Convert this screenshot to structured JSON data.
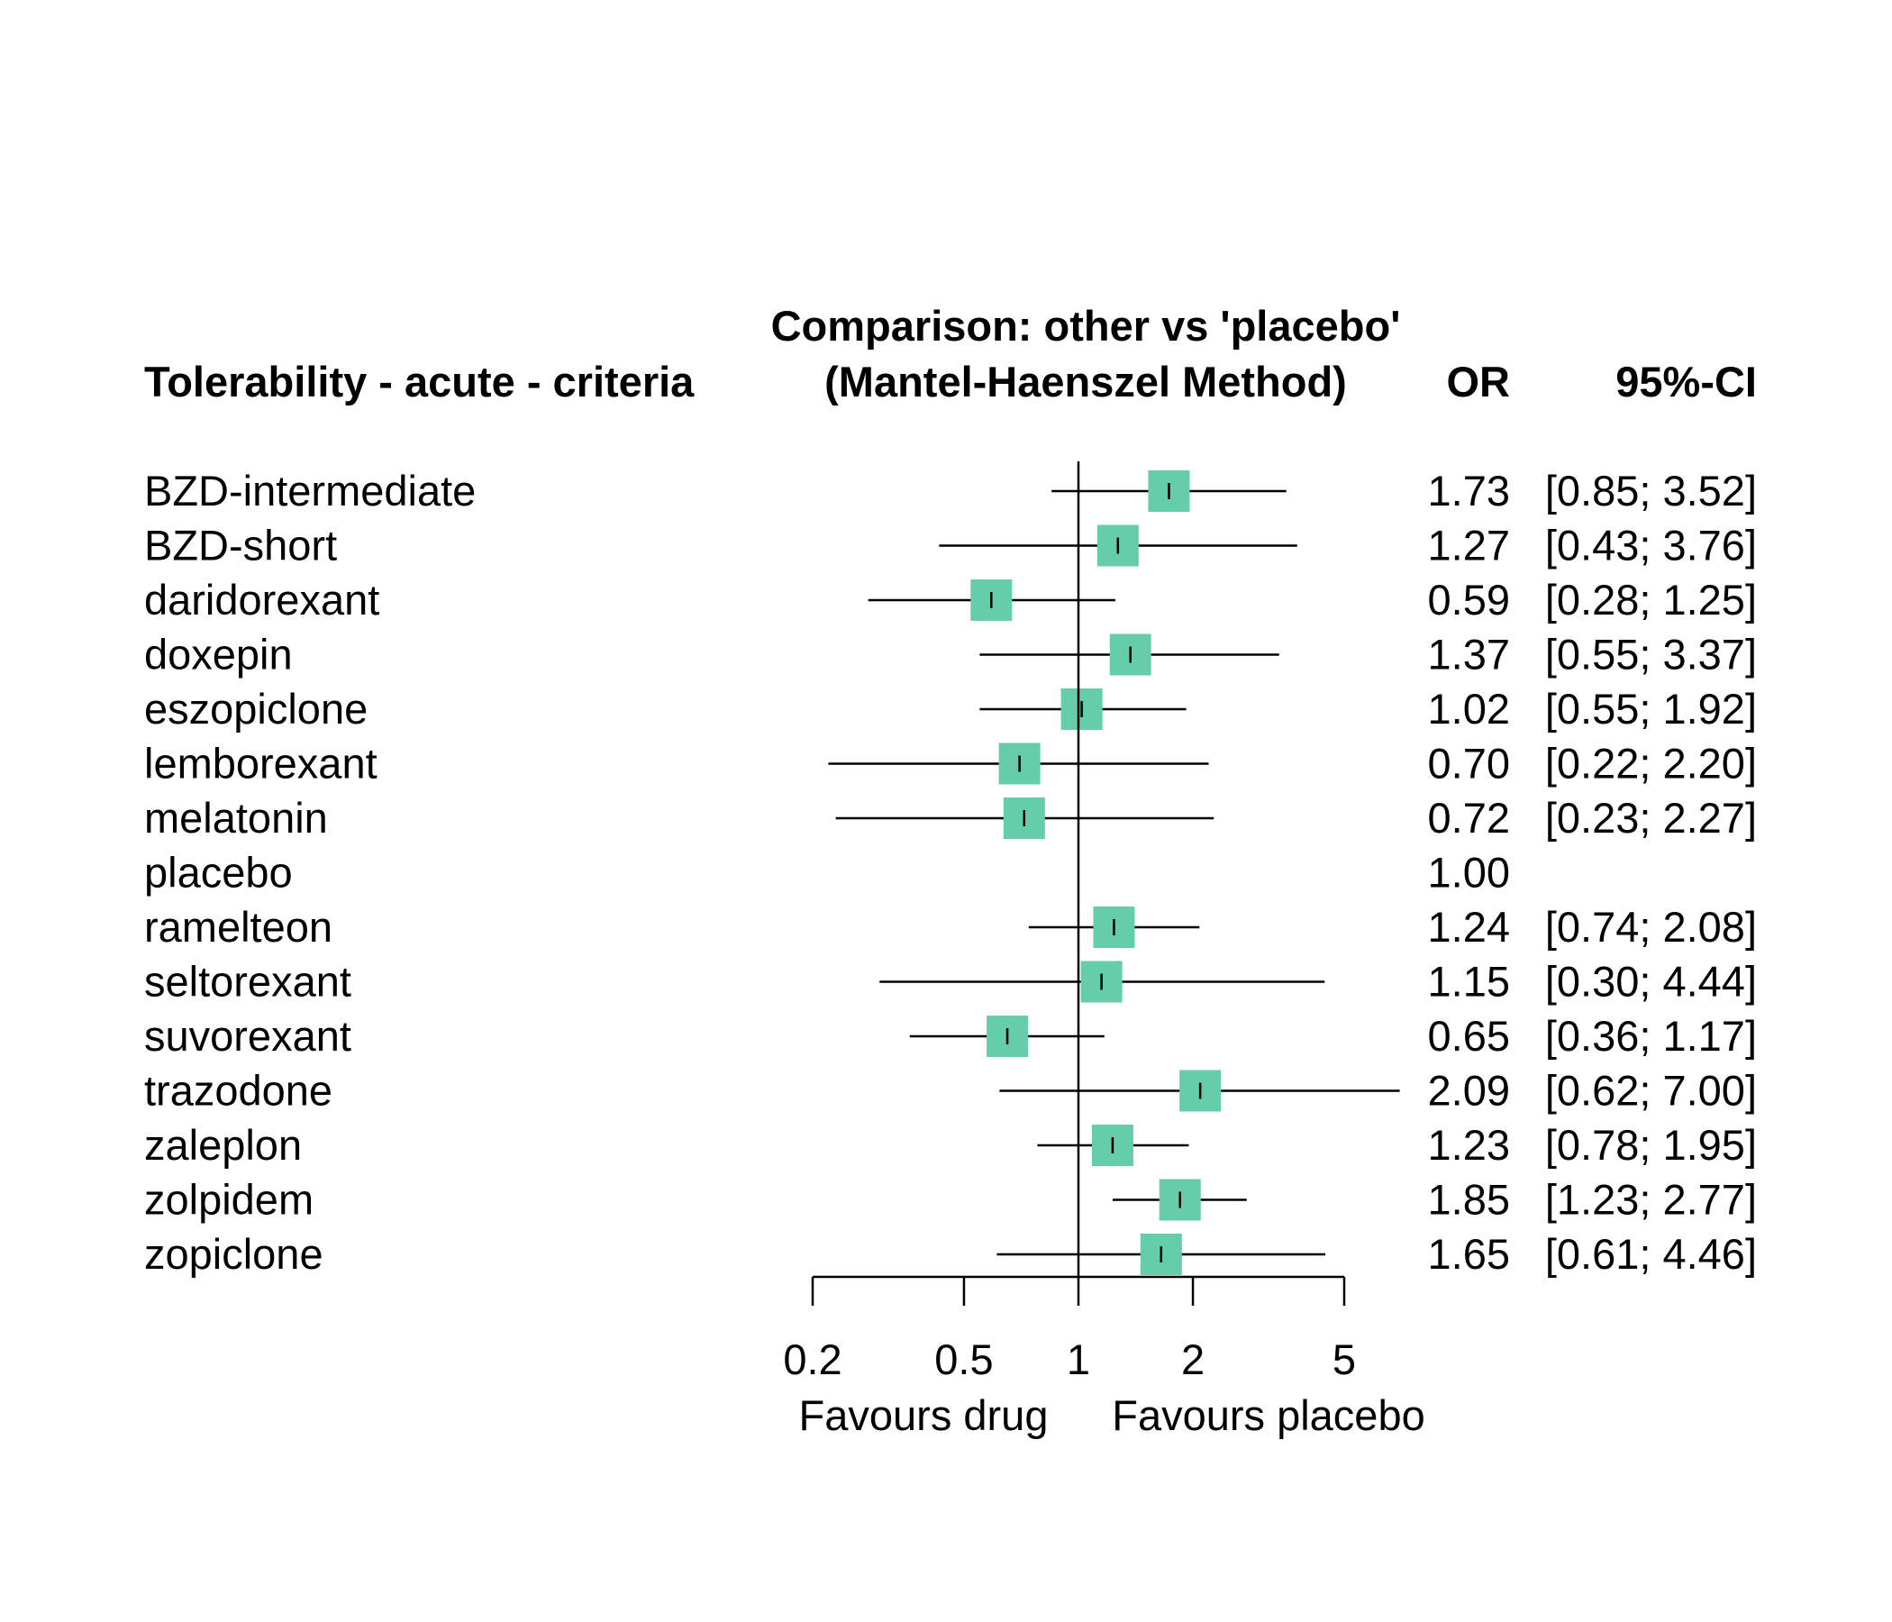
{
  "header": {
    "outcome_label": "Tolerability - acute - criteria",
    "comparison_line1": "Comparison: other vs 'placebo'",
    "comparison_line2": "(Mantel-Haenszel Method)",
    "col_or": "OR",
    "col_ci": "95%-CI"
  },
  "footer": {
    "favours_left": "Favours drug",
    "favours_right": "Favours placebo"
  },
  "colors": {
    "box": "#66CDAA",
    "line": "#000000"
  },
  "chart_data": {
    "type": "forest",
    "scale": "log",
    "xlim": [
      0.2,
      5
    ],
    "reference_value": 1,
    "x_ticks": [
      {
        "value": 0.2,
        "label": "0.2"
      },
      {
        "value": 0.5,
        "label": "0.5"
      },
      {
        "value": 1,
        "label": "1"
      },
      {
        "value": 2,
        "label": "2"
      },
      {
        "value": 5,
        "label": "5"
      }
    ],
    "studies": [
      {
        "name": "BZD-intermediate",
        "or": 1.73,
        "lower": 0.85,
        "upper": 3.52,
        "or_text": "1.73",
        "ci_text": "[0.85; 3.52]"
      },
      {
        "name": "BZD-short",
        "or": 1.27,
        "lower": 0.43,
        "upper": 3.76,
        "or_text": "1.27",
        "ci_text": "[0.43; 3.76]"
      },
      {
        "name": "daridorexant",
        "or": 0.59,
        "lower": 0.28,
        "upper": 1.25,
        "or_text": "0.59",
        "ci_text": "[0.28; 1.25]"
      },
      {
        "name": "doxepin",
        "or": 1.37,
        "lower": 0.55,
        "upper": 3.37,
        "or_text": "1.37",
        "ci_text": "[0.55; 3.37]"
      },
      {
        "name": "eszopiclone",
        "or": 1.02,
        "lower": 0.55,
        "upper": 1.92,
        "or_text": "1.02",
        "ci_text": "[0.55; 1.92]"
      },
      {
        "name": "lemborexant",
        "or": 0.7,
        "lower": 0.22,
        "upper": 2.2,
        "or_text": "0.70",
        "ci_text": "[0.22; 2.20]"
      },
      {
        "name": "melatonin",
        "or": 0.72,
        "lower": 0.23,
        "upper": 2.27,
        "or_text": "0.72",
        "ci_text": "[0.23; 2.27]"
      },
      {
        "name": "placebo",
        "or": 1.0,
        "lower": null,
        "upper": null,
        "or_text": "1.00",
        "ci_text": ""
      },
      {
        "name": "ramelteon",
        "or": 1.24,
        "lower": 0.74,
        "upper": 2.08,
        "or_text": "1.24",
        "ci_text": "[0.74; 2.08]"
      },
      {
        "name": "seltorexant",
        "or": 1.15,
        "lower": 0.3,
        "upper": 4.44,
        "or_text": "1.15",
        "ci_text": "[0.30; 4.44]"
      },
      {
        "name": "suvorexant",
        "or": 0.65,
        "lower": 0.36,
        "upper": 1.17,
        "or_text": "0.65",
        "ci_text": "[0.36; 1.17]"
      },
      {
        "name": "trazodone",
        "or": 2.09,
        "lower": 0.62,
        "upper": 7.0,
        "or_text": "2.09",
        "ci_text": "[0.62; 7.00]"
      },
      {
        "name": "zaleplon",
        "or": 1.23,
        "lower": 0.78,
        "upper": 1.95,
        "or_text": "1.23",
        "ci_text": "[0.78; 1.95]"
      },
      {
        "name": "zolpidem",
        "or": 1.85,
        "lower": 1.23,
        "upper": 2.77,
        "or_text": "1.85",
        "ci_text": "[1.23; 2.77]"
      },
      {
        "name": "zopiclone",
        "or": 1.65,
        "lower": 0.61,
        "upper": 4.46,
        "or_text": "1.65",
        "ci_text": "[0.61; 4.46]"
      }
    ]
  }
}
